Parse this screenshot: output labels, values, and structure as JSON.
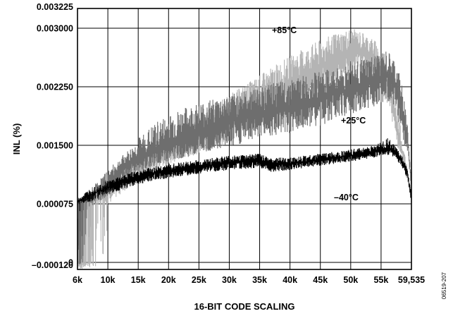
{
  "chart_data": {
    "type": "line",
    "xlabel": "16-BIT CODE SCALING",
    "ylabel": "INL (%)",
    "figure_id": "06519-207",
    "x_ticks": [
      {
        "value": 6000,
        "label": "6k"
      },
      {
        "value": 10000,
        "label": "10k"
      },
      {
        "value": 15000,
        "label": "15k"
      },
      {
        "value": 20000,
        "label": "20k"
      },
      {
        "value": 25000,
        "label": "25k"
      },
      {
        "value": 30000,
        "label": "30k"
      },
      {
        "value": 35000,
        "label": "35k"
      },
      {
        "value": 40000,
        "label": "40k"
      },
      {
        "value": 45000,
        "label": "45k"
      },
      {
        "value": 50000,
        "label": "50k"
      },
      {
        "value": 55000,
        "label": "55k"
      },
      {
        "value": 59535,
        "label": "59,535"
      }
    ],
    "y_ticks": [
      {
        "value": -0.00012,
        "label": "–0.000120"
      },
      {
        "value": 0,
        "label": "0"
      },
      {
        "value": 7.5e-05,
        "label": "0.000075"
      },
      {
        "value": 0.0015,
        "label": "0.001500"
      },
      {
        "value": 0.00225,
        "label": "0.002250"
      },
      {
        "value": 0.003,
        "label": "0.003000"
      },
      {
        "value": 0.003225,
        "label": "0.003225"
      }
    ],
    "xlim": [
      6000,
      59535
    ],
    "grid": true,
    "series": [
      {
        "name": "+85°C",
        "color": "#b4b4b4",
        "x": [
          6000,
          8000,
          10000,
          12000,
          15000,
          18000,
          20000,
          25000,
          30000,
          35000,
          40000,
          45000,
          48000,
          50000,
          52000,
          54000,
          55000,
          56000,
          57000,
          58000,
          59000,
          59535
        ],
        "upper": [
          7.5e-05,
          0.0004,
          0.0007,
          0.00095,
          0.00125,
          0.00145,
          0.0016,
          0.0019,
          0.00215,
          0.0024,
          0.00265,
          0.00285,
          0.00295,
          0.003,
          0.00295,
          0.00285,
          0.0027,
          0.0025,
          0.0022,
          0.0017,
          0.0009,
          0.0003
        ],
        "lower": [
          -0.00012,
          -0.0001,
          5e-05,
          0.0003,
          0.00065,
          0.0009,
          0.00105,
          0.0013,
          0.00155,
          0.00175,
          0.00195,
          0.00215,
          0.0023,
          0.0024,
          0.00245,
          0.00235,
          0.0022,
          0.002,
          0.0017,
          0.0012,
          0.0006,
          0.00015
        ]
      },
      {
        "name": "+25°C",
        "color": "#6e6e6e",
        "x": [
          6000,
          8000,
          10000,
          12000,
          15000,
          18000,
          20000,
          25000,
          30000,
          35000,
          40000,
          45000,
          48000,
          50000,
          52000,
          54000,
          55000,
          56000,
          57000,
          58000,
          59000,
          59535
        ],
        "upper": [
          7.5e-05,
          0.0005,
          0.0009,
          0.0012,
          0.0016,
          0.0018,
          0.0019,
          0.00205,
          0.00215,
          0.00225,
          0.00235,
          0.00245,
          0.0025,
          0.00255,
          0.0026,
          0.00265,
          0.0027,
          0.0027,
          0.0026,
          0.00235,
          0.0018,
          0.0006
        ],
        "lower": [
          -5e-05,
          5e-05,
          0.00025,
          0.0005,
          0.00085,
          0.001,
          0.0011,
          0.0013,
          0.00145,
          0.0016,
          0.00165,
          0.00175,
          0.00185,
          0.0019,
          0.00195,
          0.002,
          0.00205,
          0.00205,
          0.00195,
          0.0017,
          0.0013,
          0.0004
        ]
      },
      {
        "name": "–40°C",
        "color": "#000000",
        "x": [
          6000,
          8000,
          10000,
          12000,
          15000,
          18000,
          20000,
          25000,
          30000,
          35000,
          37000,
          40000,
          45000,
          50000,
          52000,
          54000,
          55000,
          56000,
          57000,
          58000,
          59000,
          59535
        ],
        "upper": [
          0.0002,
          0.0005,
          0.00065,
          0.00075,
          0.0009,
          0.001,
          0.00105,
          0.00115,
          0.00125,
          0.0013,
          0.0012,
          0.0012,
          0.0013,
          0.0014,
          0.00145,
          0.0015,
          0.00155,
          0.0016,
          0.0015,
          0.0013,
          0.0009,
          0.0003
        ],
        "lower": [
          5e-05,
          0.00015,
          0.0003,
          0.0004,
          0.00055,
          0.00065,
          0.0007,
          0.0008,
          0.0009,
          0.00095,
          0.00085,
          0.0009,
          0.001,
          0.0011,
          0.00115,
          0.0012,
          0.00125,
          0.00125,
          0.0012,
          0.001,
          0.00065,
          0.0001
        ]
      }
    ]
  }
}
